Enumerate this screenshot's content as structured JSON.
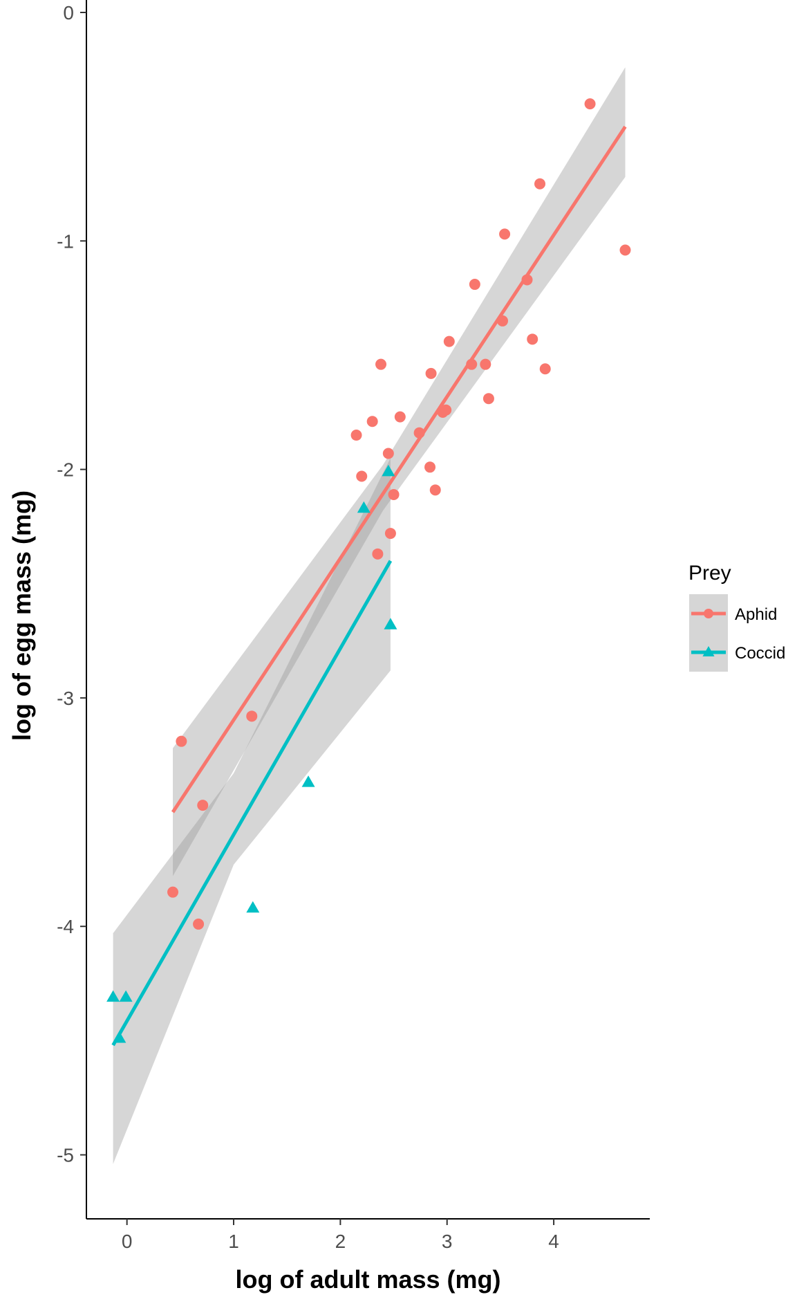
{
  "chart_data": {
    "type": "scatter",
    "xlabel": "log of adult mass (mg)",
    "ylabel": "log of egg mass (mg)",
    "xlim": [
      -0.38,
      4.9
    ],
    "ylim": [
      -5.28,
      0.0
    ],
    "xticks": [
      0,
      1,
      2,
      3,
      4
    ],
    "yticks": [
      0,
      -1,
      -2,
      -3,
      -4,
      -5
    ],
    "grid": false,
    "legend": {
      "title": "Prey",
      "placement": "right",
      "entries": [
        "Aphid",
        "Coccid"
      ]
    },
    "series": [
      {
        "name": "Aphid",
        "marker": "circle",
        "color": "#F8766D",
        "points": [
          [
            0.43,
            -3.85
          ],
          [
            0.51,
            -3.19
          ],
          [
            0.67,
            -3.99
          ],
          [
            0.71,
            -3.47
          ],
          [
            1.17,
            -3.08
          ],
          [
            2.15,
            -1.85
          ],
          [
            2.2,
            -2.03
          ],
          [
            2.3,
            -1.79
          ],
          [
            2.35,
            -2.37
          ],
          [
            2.38,
            -1.54
          ],
          [
            2.45,
            -1.93
          ],
          [
            2.47,
            -2.28
          ],
          [
            2.5,
            -2.11
          ],
          [
            2.56,
            -1.77
          ],
          [
            2.74,
            -1.84
          ],
          [
            2.84,
            -1.99
          ],
          [
            2.85,
            -1.58
          ],
          [
            2.89,
            -2.09
          ],
          [
            2.96,
            -1.75
          ],
          [
            2.99,
            -1.74
          ],
          [
            3.02,
            -1.44
          ],
          [
            3.23,
            -1.54
          ],
          [
            3.26,
            -1.19
          ],
          [
            3.36,
            -1.54
          ],
          [
            3.39,
            -1.69
          ],
          [
            3.52,
            -1.35
          ],
          [
            3.54,
            -0.97
          ],
          [
            3.75,
            -1.17
          ],
          [
            3.8,
            -1.43
          ],
          [
            3.87,
            -0.75
          ],
          [
            3.92,
            -1.56
          ],
          [
            4.34,
            -0.4
          ],
          [
            4.67,
            -1.04
          ]
        ],
        "fit": {
          "x": [
            0.43,
            4.67
          ],
          "y": [
            -3.5,
            -0.5
          ]
        },
        "band": {
          "x": [
            0.43,
            2.4,
            4.67
          ],
          "lower": [
            -3.78,
            -2.18,
            -0.72
          ],
          "upper": [
            -3.22,
            -1.98,
            -0.24
          ]
        }
      },
      {
        "name": "Coccid",
        "marker": "triangle",
        "color": "#00BFC4",
        "points": [
          [
            -0.13,
            -4.31
          ],
          [
            -0.07,
            -4.49
          ],
          [
            -0.01,
            -4.31
          ],
          [
            1.18,
            -3.92
          ],
          [
            1.7,
            -3.37
          ],
          [
            2.22,
            -2.17
          ],
          [
            2.45,
            -2.01
          ],
          [
            2.47,
            -2.68
          ]
        ],
        "fit": {
          "x": [
            -0.13,
            2.47
          ],
          "y": [
            -4.52,
            -2.4
          ]
        },
        "band": {
          "x": [
            -0.13,
            1.0,
            2.47
          ],
          "lower": [
            -5.04,
            -3.73,
            -2.88
          ],
          "upper": [
            -4.03,
            -3.33,
            -1.95
          ]
        }
      }
    ]
  }
}
